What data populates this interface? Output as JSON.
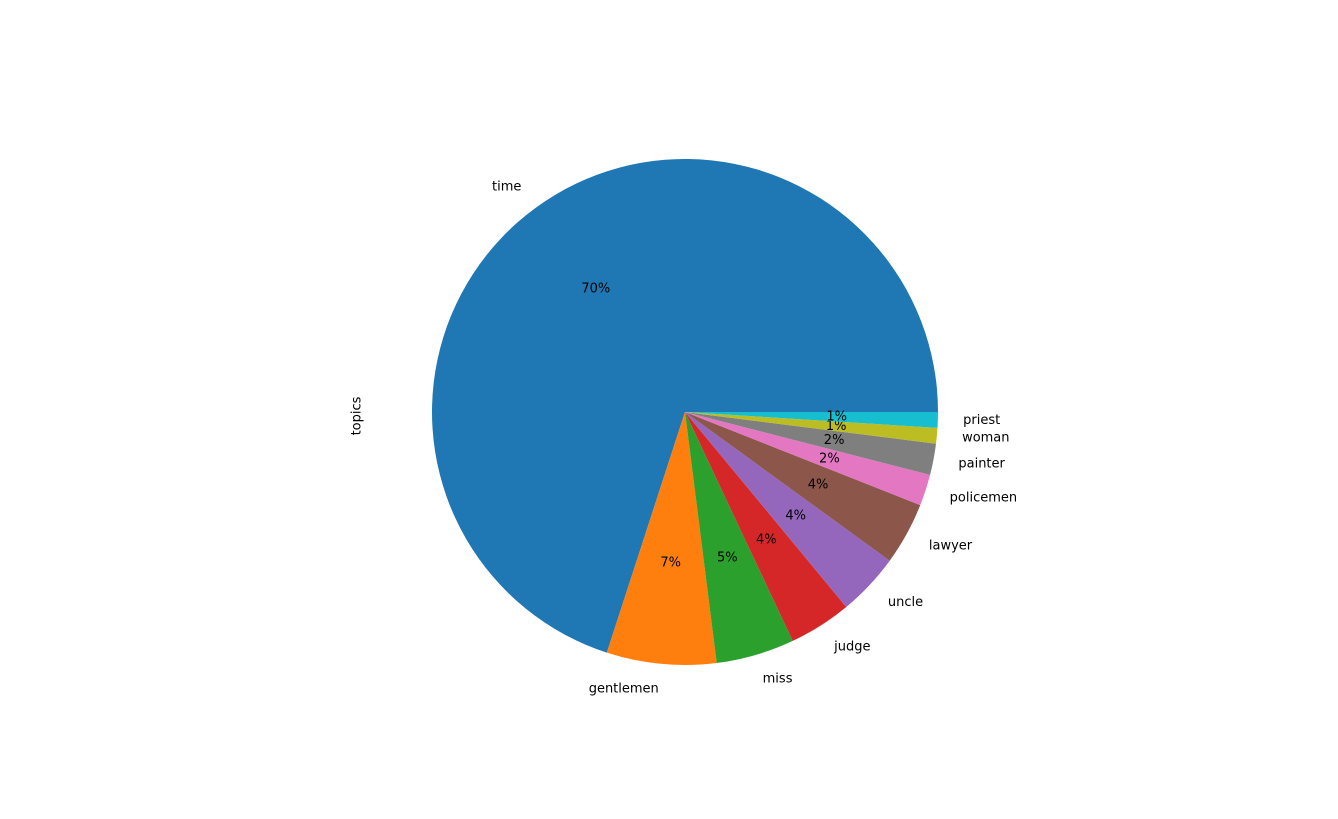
{
  "chart_data": {
    "type": "pie",
    "ylabel": "topics",
    "categories": [
      "time",
      "gentlemen",
      "miss",
      "judge",
      "uncle",
      "lawyer",
      "policemen",
      "painter",
      "woman",
      "priest"
    ],
    "values": [
      70,
      7,
      5,
      4,
      4,
      4,
      2,
      2,
      1,
      1
    ],
    "value_labels": [
      "70%",
      "7%",
      "5%",
      "4%",
      "4%",
      "4%",
      "2%",
      "2%",
      "1%",
      "1%"
    ],
    "colors": [
      "#1f77b4",
      "#ff7f0e",
      "#2ca02c",
      "#d62728",
      "#9467bd",
      "#8c564b",
      "#e377c2",
      "#7f7f7f",
      "#bcbd22",
      "#17becf"
    ]
  }
}
